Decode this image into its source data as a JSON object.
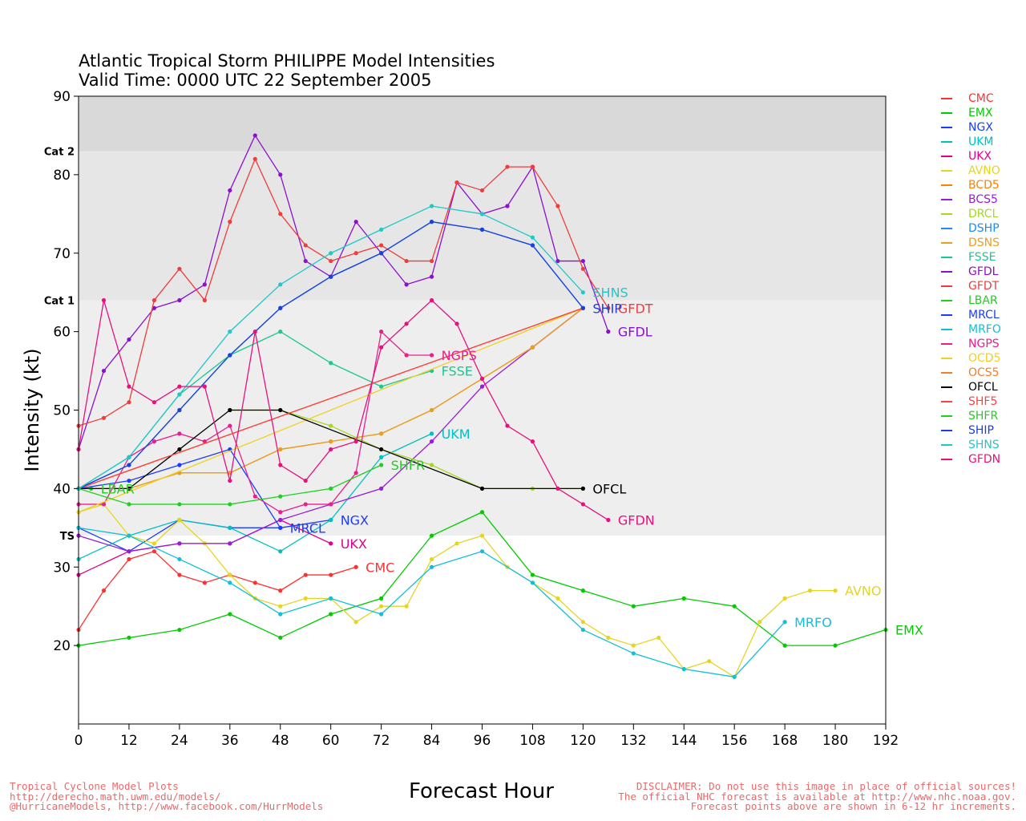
{
  "title": {
    "line1": "Atlantic Tropical Storm PHILIPPE Model Intensities",
    "line2": "Valid Time: 0000 UTC 22 September 2005"
  },
  "footer": {
    "left": [
      "Tropical Cyclone Model Plots",
      "http://derecho.math.uwm.edu/models/",
      "@HurricaneModels, http://www.facebook.com/HurrModels"
    ],
    "center": "Forecast Hour",
    "right": [
      "DISCLAIMER: Do not use this image in place of official sources!",
      "The official NHC forecast is available at http://www.nhc.noaa.gov.",
      "Forecast points above are shown in 6-12 hr increments."
    ]
  },
  "chart_data": {
    "type": "line",
    "title": "Atlantic Tropical Storm PHILIPPE Model Intensities",
    "subtitle": "Valid Time: 0000 UTC 22 September 2005",
    "xlabel": "Forecast Hour",
    "ylabel": "Intensity (kt)",
    "xlim": [
      0,
      192
    ],
    "ylim": [
      10,
      90
    ],
    "xticks": [
      0,
      12,
      24,
      36,
      48,
      60,
      72,
      84,
      96,
      108,
      120,
      132,
      144,
      156,
      168,
      180,
      192
    ],
    "yticks": [
      20,
      30,
      40,
      50,
      60,
      70,
      80,
      90
    ],
    "bands": [
      {
        "label": "TS",
        "from": 34,
        "to": 64,
        "color": "#eeeeee"
      },
      {
        "label": "Cat 1",
        "from": 64,
        "to": 83,
        "color": "#e6e6e6"
      },
      {
        "label": "Cat 2",
        "from": 83,
        "to": 90,
        "color": "#d9d9d9"
      }
    ],
    "series": [
      {
        "name": "CMC",
        "color": "#ff3030",
        "label": "CMC",
        "x": [
          0,
          6,
          12,
          18,
          24,
          30,
          36,
          42,
          48,
          54,
          60,
          66
        ],
        "y": [
          22,
          27,
          31,
          32,
          29,
          28,
          29,
          28,
          27,
          29,
          29,
          30
        ]
      },
      {
        "name": "EMX",
        "color": "#00cc00",
        "label": "EMX",
        "x": [
          0,
          12,
          24,
          36,
          48,
          60,
          72,
          84,
          96,
          108,
          120,
          132,
          144,
          156,
          168,
          180,
          192
        ],
        "y": [
          20,
          21,
          22,
          24,
          21,
          24,
          26,
          34,
          37,
          29,
          27,
          25,
          26,
          25,
          20,
          20,
          22
        ]
      },
      {
        "name": "NGX",
        "color": "#1a3cff",
        "label": "NGX",
        "x": [
          0,
          12,
          24,
          36,
          48,
          60
        ],
        "y": [
          35,
          32,
          36,
          35,
          35,
          36
        ]
      },
      {
        "name": "UKM",
        "color": "#00c0c0",
        "label": "UKM",
        "x": [
          0,
          12,
          24,
          36,
          48,
          60,
          72,
          84
        ],
        "y": [
          31,
          34,
          36,
          35,
          32,
          36,
          44,
          47
        ]
      },
      {
        "name": "UKX",
        "color": "#e0008a",
        "label": "UKX",
        "x": [
          0,
          12,
          24,
          36,
          48,
          60
        ],
        "y": [
          29,
          32,
          33,
          33,
          36,
          33
        ]
      },
      {
        "name": "AVNO",
        "color": "#e6d520",
        "label": "AVNO",
        "x": [
          0,
          6,
          12,
          18,
          24,
          30,
          36,
          42,
          48,
          54,
          60,
          66,
          72,
          78,
          84,
          90,
          96,
          102,
          108,
          114,
          120,
          126,
          132,
          138,
          144,
          150,
          156,
          162,
          168,
          174,
          180
        ],
        "y": [
          37,
          38,
          34,
          33,
          36,
          33,
          29,
          26,
          25,
          26,
          26,
          23,
          25,
          25,
          31,
          33,
          34,
          30,
          28,
          26,
          23,
          21,
          20,
          21,
          17,
          18,
          16,
          23,
          26,
          27,
          27
        ]
      },
      {
        "name": "BCD5",
        "color": "#ff7f00",
        "label": "",
        "x": [
          0,
          12,
          24,
          36,
          48,
          60,
          72,
          84,
          96,
          108,
          120
        ],
        "y": [
          40,
          40,
          42,
          42,
          45,
          46,
          47,
          50,
          54,
          58,
          63
        ]
      },
      {
        "name": "BCS5",
        "color": "#9a1cd8",
        "label": "",
        "x": [
          0,
          12,
          24,
          36,
          48,
          60,
          72,
          84,
          96,
          108,
          120
        ],
        "y": [
          34,
          32,
          33,
          33,
          36,
          38,
          40,
          46,
          53,
          58,
          63
        ]
      },
      {
        "name": "DRCL",
        "color": "#a6d820",
        "label": "",
        "x": [
          36,
          48,
          60,
          72,
          84,
          96,
          108,
          120
        ],
        "y": [
          50,
          50,
          48,
          45,
          43,
          40,
          40,
          40
        ]
      },
      {
        "name": "DSHP",
        "color": "#1a8cff",
        "label": "",
        "x": [
          0,
          12,
          24,
          36,
          48,
          60,
          72,
          84,
          96,
          108,
          120
        ],
        "y": [
          40,
          43,
          50,
          57,
          63,
          67,
          70,
          74,
          73,
          71,
          63
        ]
      },
      {
        "name": "DSNS",
        "color": "#e8a020",
        "label": "",
        "x": [
          0,
          12,
          24,
          36,
          48,
          60,
          72,
          84,
          96,
          108,
          120
        ],
        "y": [
          40,
          40,
          42,
          42,
          45,
          46,
          47,
          50,
          54,
          58,
          63
        ]
      },
      {
        "name": "FSSE",
        "color": "#1ac890",
        "label": "FSSE",
        "x": [
          0,
          12,
          24,
          36,
          48,
          60,
          72,
          84
        ],
        "y": [
          40,
          44,
          52,
          57,
          60,
          56,
          53,
          55
        ]
      },
      {
        "name": "GFDL",
        "color": "#8a10d0",
        "label": "GFDL",
        "x": [
          0,
          6,
          12,
          18,
          24,
          30,
          36,
          42,
          48,
          54,
          60,
          66,
          72,
          78,
          84,
          90,
          96,
          102,
          108,
          114,
          120,
          126
        ],
        "y": [
          45,
          55,
          59,
          63,
          64,
          66,
          78,
          85,
          80,
          69,
          67,
          74,
          70,
          66,
          67,
          79,
          75,
          76,
          81,
          69,
          69,
          60
        ]
      },
      {
        "name": "GFDT",
        "color": "#f03c3c",
        "label": "GFDT",
        "x": [
          0,
          6,
          12,
          18,
          24,
          30,
          36,
          42,
          48,
          54,
          60,
          66,
          72,
          78,
          84,
          90,
          96,
          102,
          108,
          114,
          120,
          126
        ],
        "y": [
          48,
          49,
          51,
          64,
          68,
          64,
          74,
          82,
          75,
          71,
          69,
          70,
          71,
          69,
          69,
          79,
          78,
          81,
          81,
          76,
          68,
          63
        ]
      },
      {
        "name": "LBAR",
        "color": "#20d020",
        "label": "LBAR",
        "x": [
          0,
          3
        ],
        "y": [
          40,
          40
        ]
      },
      {
        "name": "MRCL",
        "color": "#1a3cff",
        "label": "MRCL",
        "x": [
          0,
          12,
          24,
          36,
          48
        ],
        "y": [
          40,
          41,
          43,
          45,
          35
        ]
      },
      {
        "name": "MRFO",
        "color": "#10c0d8",
        "label": "MRFO",
        "x": [
          0,
          12,
          24,
          36,
          48,
          60,
          72,
          84,
          96,
          108,
          120,
          132,
          144,
          156,
          168
        ],
        "y": [
          35,
          34,
          31,
          28,
          24,
          26,
          24,
          30,
          32,
          28,
          22,
          19,
          17,
          16,
          23
        ]
      },
      {
        "name": "NGPS",
        "color": "#e8208c",
        "label": "NGPS",
        "x": [
          0,
          6,
          12,
          18,
          24,
          30,
          36,
          42,
          48,
          54,
          60,
          66,
          72,
          78,
          84
        ],
        "y": [
          38,
          38,
          44,
          46,
          47,
          46,
          48,
          39,
          37,
          38,
          38,
          42,
          60,
          57,
          57
        ]
      },
      {
        "name": "OCD5",
        "color": "#f0d020",
        "label": "",
        "x": [
          0,
          120
        ],
        "y": [
          37,
          63
        ]
      },
      {
        "name": "OCS5",
        "color": "#f08030",
        "label": "",
        "x": [
          0,
          120
        ],
        "y": [
          40,
          63
        ]
      },
      {
        "name": "OFCL",
        "color": "#000000",
        "label": "OFCL",
        "x": [
          0,
          12,
          24,
          36,
          48,
          72,
          96,
          120
        ],
        "y": [
          40,
          40,
          45,
          50,
          50,
          45,
          40,
          40
        ]
      },
      {
        "name": "SHF5",
        "color": "#ff4040",
        "label": "",
        "x": [
          0,
          120
        ],
        "y": [
          40,
          63
        ]
      },
      {
        "name": "SHFR",
        "color": "#20d020",
        "label": "SHFR",
        "x": [
          0,
          12,
          24,
          36,
          48,
          60,
          72
        ],
        "y": [
          40,
          38,
          38,
          38,
          39,
          40,
          43
        ]
      },
      {
        "name": "SHIP",
        "color": "#1a40e0",
        "label": "SHIP",
        "x": [
          0,
          12,
          24,
          36,
          48,
          60,
          72,
          84,
          96,
          108,
          120
        ],
        "y": [
          40,
          43,
          50,
          57,
          63,
          67,
          70,
          74,
          73,
          71,
          63
        ]
      },
      {
        "name": "SHNS",
        "color": "#20c8c8",
        "label": "SHNS",
        "x": [
          0,
          12,
          24,
          36,
          48,
          60,
          72,
          84,
          96,
          108,
          120
        ],
        "y": [
          40,
          44,
          52,
          60,
          66,
          70,
          73,
          76,
          75,
          72,
          65
        ]
      },
      {
        "name": "GFDN",
        "color": "#e8107c",
        "label": "GFDN",
        "x": [
          0,
          6,
          12,
          18,
          24,
          30,
          36,
          42,
          48,
          54,
          60,
          66,
          72,
          78,
          84,
          90,
          96,
          102,
          108,
          114,
          120,
          126
        ],
        "y": [
          45,
          64,
          53,
          51,
          53,
          53,
          41,
          60,
          43,
          41,
          45,
          46,
          58,
          61,
          64,
          61,
          54,
          48,
          46,
          40,
          38,
          36
        ]
      }
    ]
  }
}
